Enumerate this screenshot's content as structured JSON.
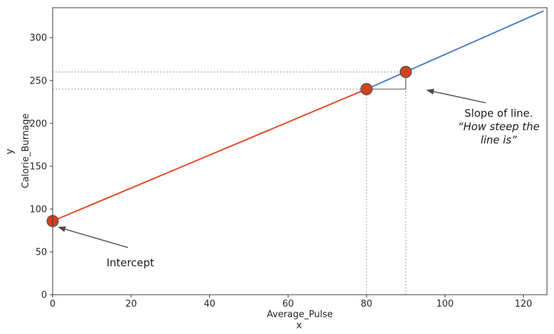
{
  "chart_data": {
    "type": "line",
    "title": "",
    "xlabel": "Average_Pulse",
    "xlabel_outer": "x",
    "ylabel": "Calorie_Burnage",
    "ylabel_outer": "y",
    "xlim": [
      0,
      126
    ],
    "ylim": [
      0,
      335
    ],
    "xticks": [
      0,
      20,
      40,
      60,
      80,
      100,
      120
    ],
    "yticks": [
      0,
      50,
      100,
      150,
      200,
      250,
      300
    ],
    "grid": false,
    "legend": "none",
    "series": [
      {
        "name": "line-segment-lower",
        "color": "#e24a26",
        "width": 2,
        "points": [
          [
            0,
            86
          ],
          [
            80,
            240
          ]
        ]
      },
      {
        "name": "line-segment-upper",
        "color": "#4d7ec3",
        "width": 2,
        "points": [
          [
            80,
            240
          ],
          [
            125,
            331
          ]
        ]
      }
    ],
    "markers": {
      "color": "#d2431d",
      "edge_color": "#4f4f4f",
      "radius": 8,
      "points": [
        [
          0,
          86
        ],
        [
          80,
          240
        ],
        [
          90,
          260
        ]
      ]
    },
    "guide_lines": {
      "color": "#8a8a8a",
      "horizontal": [
        {
          "y": 240,
          "x_from": 0,
          "x_to": 80
        },
        {
          "y": 260,
          "x_from": 0,
          "x_to": 90
        }
      ],
      "vertical": [
        {
          "x": 80,
          "y_from": 0,
          "y_to": 240
        },
        {
          "x": 90,
          "y_from": 0,
          "y_to": 260
        }
      ]
    },
    "slope_step": {
      "color": "#6e6e6e",
      "path": [
        [
          80,
          240
        ],
        [
          90,
          240
        ],
        [
          90,
          260
        ]
      ]
    },
    "annotations": {
      "slope": {
        "line1": "Slope of line.",
        "line2": "“How steep the",
        "line3": "line is”",
        "text_center": [
          113.7,
          196
        ],
        "arrow": {
          "from": [
            110.4,
            224
          ],
          "to": [
            95.2,
            239
          ]
        }
      },
      "intercept": {
        "label": "Intercept",
        "text_center": [
          19.8,
          37
        ],
        "arrow": {
          "from": [
            19.2,
            55
          ],
          "to": [
            1.3,
            79
          ]
        }
      }
    },
    "arrow_color": "#4d4d4d",
    "axis_color": "#3a3a3a",
    "text_color": "#262626"
  }
}
